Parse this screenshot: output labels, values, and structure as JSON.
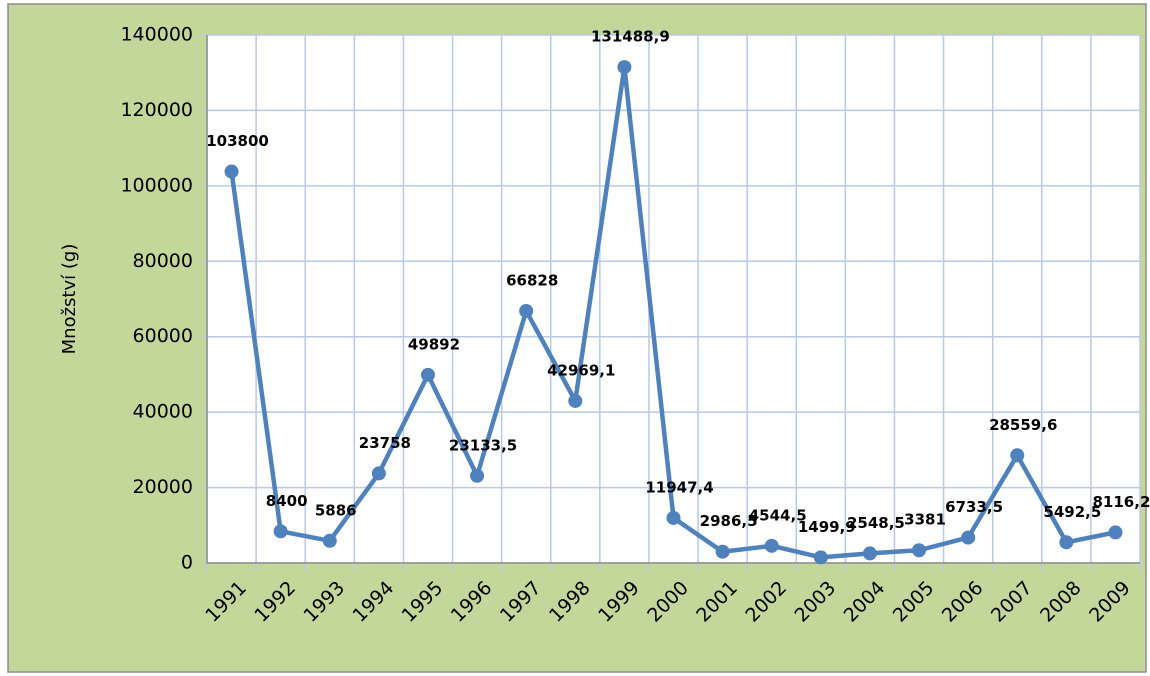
{
  "chart_data": {
    "type": "line",
    "y_label": "Množství (g)",
    "categories": [
      "1991",
      "1992",
      "1993",
      "1994",
      "1995",
      "1996",
      "1997",
      "1998",
      "1999",
      "2000",
      "2001",
      "2002",
      "2003",
      "2004",
      "2005",
      "2006",
      "2007",
      "2008",
      "2009"
    ],
    "series": [
      {
        "name": "Množství",
        "color": "#4f81bd",
        "values": [
          103800,
          8400,
          5886,
          23758,
          49892,
          23133.5,
          66828,
          42969.1,
          131488.9,
          11947.4,
          2986.5,
          4544.5,
          1499.9,
          2548.5,
          3381,
          6733.5,
          28559.6,
          5492.5,
          8116.2
        ],
        "value_labels": [
          "103800",
          "8400",
          "5886",
          "23758",
          "49892",
          "23133,5",
          "66828",
          "42969,1",
          "131488,9",
          "11947,4",
          "2986,5",
          "4544,5",
          "1499,9",
          "2548,5",
          "3381",
          "6733,5",
          "28559,6",
          "5492,5",
          "8116,2"
        ]
      }
    ],
    "ylim": [
      0,
      140000
    ],
    "yticks": [
      0,
      20000,
      40000,
      60000,
      80000,
      100000,
      120000,
      140000
    ],
    "grid": true,
    "legend": false
  }
}
